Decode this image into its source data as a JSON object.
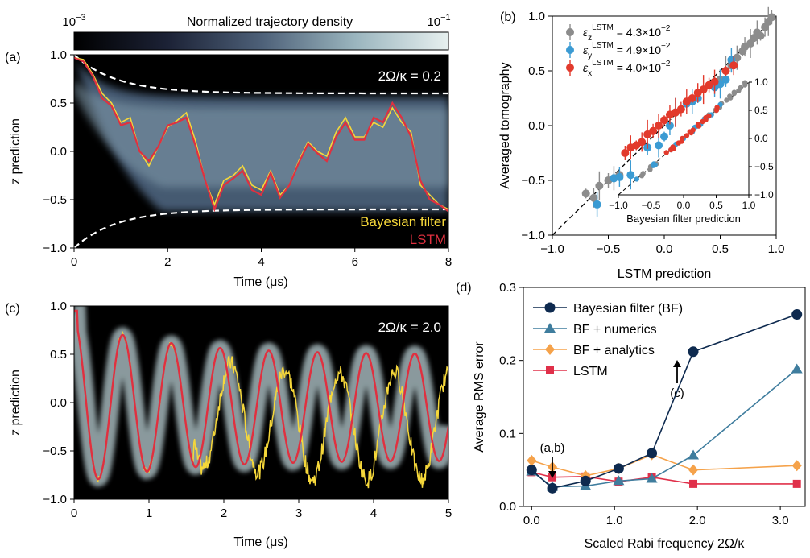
{
  "colors": {
    "bayes": "#f5d73a",
    "lstm": "#e0303f",
    "bf_navy": "#0e2a4f",
    "bf_numerics": "#3f7d9e",
    "bf_analytics": "#f5a24a",
    "lstm_d": "#e0304a",
    "eps_z": "#8c8c8c",
    "eps_y": "#3b9bd3",
    "eps_x": "#e23a2c"
  },
  "colorbar": {
    "label": "Normalized trajectory density",
    "min_label": "10",
    "min_exp": "−3",
    "max_label": "10",
    "max_exp": "−1"
  },
  "panel_a": {
    "tag": "(a)",
    "annotation": "2Ω/κ = 0.2",
    "xlabel": "Time (μs)",
    "ylabel": "z prediction",
    "legend": [
      "Bayesian filter",
      "LSTM"
    ],
    "xticks": [
      "0",
      "2",
      "4",
      "6",
      "8"
    ],
    "yticks": [
      "1.0",
      "0.5",
      "0.0",
      "−0.5",
      "−1.0"
    ]
  },
  "panel_b": {
    "tag": "(b)",
    "xlabel": "LSTM prediction",
    "ylabel": "Averaged tomography",
    "xticks": [
      "−1.0",
      "−0.5",
      "0.0",
      "0.5",
      "1.0"
    ],
    "yticks": [
      "1.0",
      "0.5",
      "0.0",
      "−0.5",
      "−1.0"
    ],
    "legend": [
      {
        "sub": "z",
        "sup": "LSTM",
        "value": "= 4.3×10",
        "exp": "−2"
      },
      {
        "sub": "y",
        "sup": "LSTM",
        "value": "= 4.9×10",
        "exp": "−2"
      },
      {
        "sub": "x",
        "sup": "LSTM",
        "value": "= 4.0×10",
        "exp": "−2"
      }
    ],
    "inset_xlabel": "Bayesian filter prediction",
    "inset_xticks": [
      "−1.0",
      "−0.5",
      "0.0",
      "0.5",
      "1.0"
    ],
    "inset_yticks": [
      "1.0",
      "0.5",
      "0.0",
      "−0.5",
      "−1.0"
    ]
  },
  "panel_c": {
    "tag": "(c)",
    "annotation": "2Ω/κ = 2.0",
    "xlabel": "Time (μs)",
    "ylabel": "z prediction",
    "xticks": [
      "0",
      "1",
      "2",
      "3",
      "4",
      "5"
    ],
    "yticks": [
      "1.0",
      "0.5",
      "0.0",
      "−0.5",
      "−1.0"
    ]
  },
  "panel_d": {
    "tag": "(d)",
    "xlabel": "Scaled Rabi frequency 2Ω/κ",
    "ylabel": "Average RMS error",
    "xticks": [
      "0.0",
      "1.0",
      "2.0",
      "3.0"
    ],
    "yticks": [
      "0.3",
      "0.2",
      "0.1",
      "0.0"
    ],
    "arrow_ab": "(a,b)",
    "arrow_c": "(c)"
  },
  "chart_data": [
    {
      "type": "line",
      "panel": "a",
      "xlabel": "Time (μs)",
      "ylabel": "z prediction",
      "xlim": [
        0,
        8
      ],
      "ylim": [
        -1,
        1
      ],
      "background": "heatmap of normalized trajectory density (log scale 1e-3 to 1e-1)",
      "x": [
        0,
        0.2,
        0.4,
        0.6,
        0.8,
        1.0,
        1.2,
        1.4,
        1.6,
        1.8,
        2.0,
        2.2,
        2.4,
        2.6,
        2.8,
        3.0,
        3.2,
        3.4,
        3.6,
        3.8,
        4.0,
        4.2,
        4.4,
        4.6,
        4.8,
        5.0,
        5.2,
        5.4,
        5.6,
        5.8,
        6.0,
        6.2,
        6.4,
        6.6,
        6.8,
        7.0,
        7.2,
        7.4,
        7.6,
        7.8,
        8.0
      ],
      "series": [
        {
          "name": "Bayesian filter",
          "values": [
            0.97,
            0.95,
            0.8,
            0.6,
            0.5,
            0.3,
            0.35,
            0.0,
            -0.15,
            0.05,
            0.25,
            0.32,
            0.4,
            0.1,
            -0.3,
            -0.55,
            -0.3,
            -0.25,
            -0.15,
            -0.35,
            -0.4,
            -0.2,
            -0.45,
            -0.35,
            -0.1,
            0.1,
            0.0,
            -0.05,
            0.2,
            0.35,
            0.15,
            0.15,
            0.3,
            0.25,
            0.45,
            0.3,
            0.2,
            -0.35,
            -0.45,
            -0.55,
            -0.6
          ]
        },
        {
          "name": "LSTM",
          "values": [
            0.97,
            0.93,
            0.78,
            0.55,
            0.47,
            0.27,
            0.3,
            0.0,
            -0.1,
            0.05,
            0.27,
            0.3,
            0.35,
            0.05,
            -0.3,
            -0.6,
            -0.35,
            -0.28,
            -0.2,
            -0.4,
            -0.45,
            -0.22,
            -0.48,
            -0.35,
            -0.12,
            0.08,
            -0.02,
            -0.1,
            0.15,
            0.3,
            0.12,
            0.12,
            0.35,
            0.3,
            0.5,
            0.35,
            0.15,
            -0.3,
            -0.5,
            -0.55,
            -0.62
          ]
        }
      ],
      "envelope": {
        "upper_final": 0.6,
        "lower_final": -0.6
      }
    },
    {
      "type": "scatter",
      "panel": "b",
      "xlabel": "LSTM prediction",
      "ylabel": "Averaged tomography",
      "xlim": [
        -1,
        1
      ],
      "ylim": [
        -1,
        1
      ],
      "series": [
        {
          "name": "ε_z LSTM = 4.3×10^-2",
          "x": [
            -0.7,
            -0.63,
            -0.58,
            -0.5,
            -0.45,
            -0.4,
            0.5,
            0.55,
            0.6,
            0.65,
            0.7,
            0.72,
            0.77,
            0.8,
            0.83,
            0.86,
            0.9,
            0.93,
            0.96
          ],
          "y": [
            -0.62,
            -0.66,
            -0.55,
            -0.5,
            -0.48,
            -0.45,
            0.42,
            0.5,
            0.55,
            0.62,
            0.68,
            0.72,
            0.75,
            0.8,
            0.85,
            0.82,
            0.9,
            0.95,
            0.99
          ]
        },
        {
          "name": "ε_y LSTM = 4.9×10^-2",
          "x": [
            -0.6,
            -0.45,
            -0.4,
            -0.3,
            -0.15,
            -0.05,
            0.0,
            0.05,
            0.1,
            0.2,
            0.25,
            0.3,
            0.45,
            0.5,
            0.55,
            0.6
          ],
          "y": [
            -0.72,
            -0.48,
            -0.47,
            -0.45,
            -0.2,
            -0.18,
            -0.1,
            0.0,
            0.12,
            0.2,
            0.22,
            0.25,
            0.35,
            0.38,
            0.42,
            0.6
          ]
        },
        {
          "name": "ε_x LSTM = 4.0×10^-2",
          "x": [
            -0.35,
            -0.3,
            -0.25,
            -0.2,
            -0.15,
            -0.1,
            -0.05,
            0.0,
            0.05,
            0.1,
            0.15,
            0.2,
            0.25,
            0.3,
            0.35,
            0.4,
            0.45,
            0.55,
            0.62
          ],
          "y": [
            -0.25,
            -0.2,
            -0.18,
            -0.15,
            -0.08,
            -0.05,
            0.0,
            0.05,
            0.1,
            0.12,
            0.15,
            0.22,
            0.25,
            0.3,
            0.33,
            0.37,
            0.4,
            0.5,
            0.55
          ]
        }
      ]
    },
    {
      "type": "line",
      "panel": "c",
      "xlabel": "Time (μs)",
      "ylabel": "z prediction",
      "xlim": [
        0,
        5
      ],
      "ylim": [
        -1,
        1
      ],
      "background": "heatmap of normalized trajectory density",
      "series": [
        {
          "name": "Bayesian filter",
          "model": "damped Rabi with noisy deviation"
        },
        {
          "name": "LSTM",
          "model": "Rabi oscillation, period ≈0.65 μs, amplitude ≈0.8 decaying to 0.6"
        }
      ]
    },
    {
      "type": "line",
      "panel": "d",
      "xlabel": "Scaled Rabi frequency 2Ω/κ",
      "ylabel": "Average RMS error",
      "xlim": [
        -0.1,
        3.3
      ],
      "ylim": [
        0,
        0.3
      ],
      "x": [
        0.0,
        0.25,
        0.65,
        1.05,
        1.45,
        1.95,
        3.2
      ],
      "series": [
        {
          "name": "Bayesian filter (BF)",
          "values": [
            0.05,
            0.025,
            0.035,
            0.052,
            0.073,
            0.212,
            0.263
          ]
        },
        {
          "name": "BF + numerics",
          "values": [
            0.048,
            0.027,
            0.028,
            0.035,
            0.038,
            0.07,
            0.188
          ]
        },
        {
          "name": "BF + analytics",
          "values": [
            0.063,
            0.054,
            0.042,
            0.052,
            0.071,
            0.05,
            0.056
          ]
        },
        {
          "name": "LSTM",
          "values": [
            0.047,
            0.04,
            0.041,
            0.034,
            0.04,
            0.031,
            0.031
          ]
        }
      ]
    }
  ]
}
